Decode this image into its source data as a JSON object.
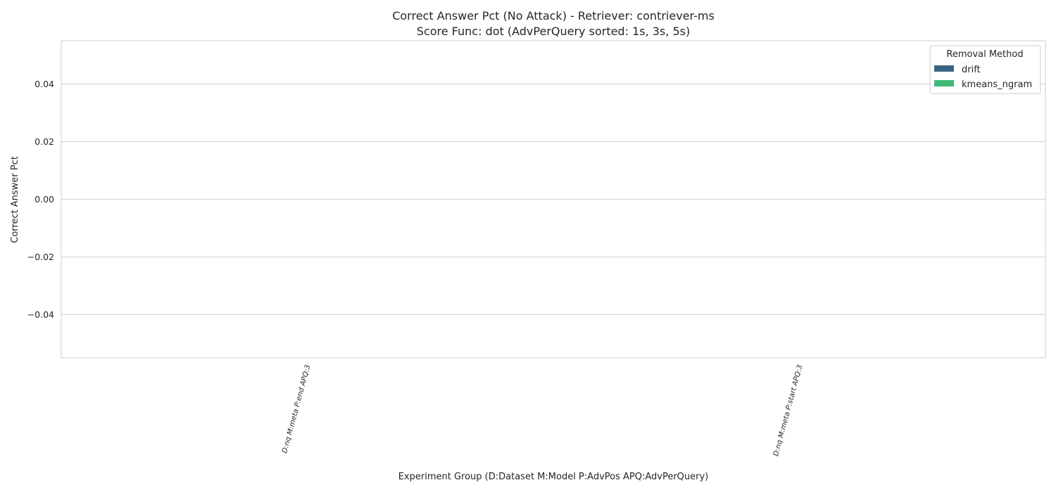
{
  "chart_data": {
    "type": "bar",
    "title_line1": "Correct Answer Pct (No Attack) - Retriever: contriever-ms",
    "title_line2": "Score Func: dot (AdvPerQuery sorted: 1s, 3s, 5s)",
    "xlabel": "Experiment Group (D:Dataset M:Model P:AdvPos APQ:AdvPerQuery)",
    "ylabel": "Correct Answer Pct",
    "categories": [
      "D:nq M:meta P:end APQ:3",
      "D:nq M:meta P:start APQ:3"
    ],
    "series": [
      {
        "name": "drift",
        "values": [
          0,
          0
        ],
        "color": "#3b6482"
      },
      {
        "name": "kmeans_ngram",
        "values": [
          0,
          0
        ],
        "color": "#3fb877"
      }
    ],
    "ylim": [
      -0.055,
      0.055
    ],
    "yticks": [
      "0.04",
      "0.02",
      "0.00",
      "−0.02",
      "−0.04"
    ],
    "ytick_values": [
      0.04,
      0.02,
      0.0,
      -0.02,
      -0.04
    ],
    "grid": true,
    "legend": {
      "title": "Removal Method",
      "placement": "top-right"
    }
  }
}
